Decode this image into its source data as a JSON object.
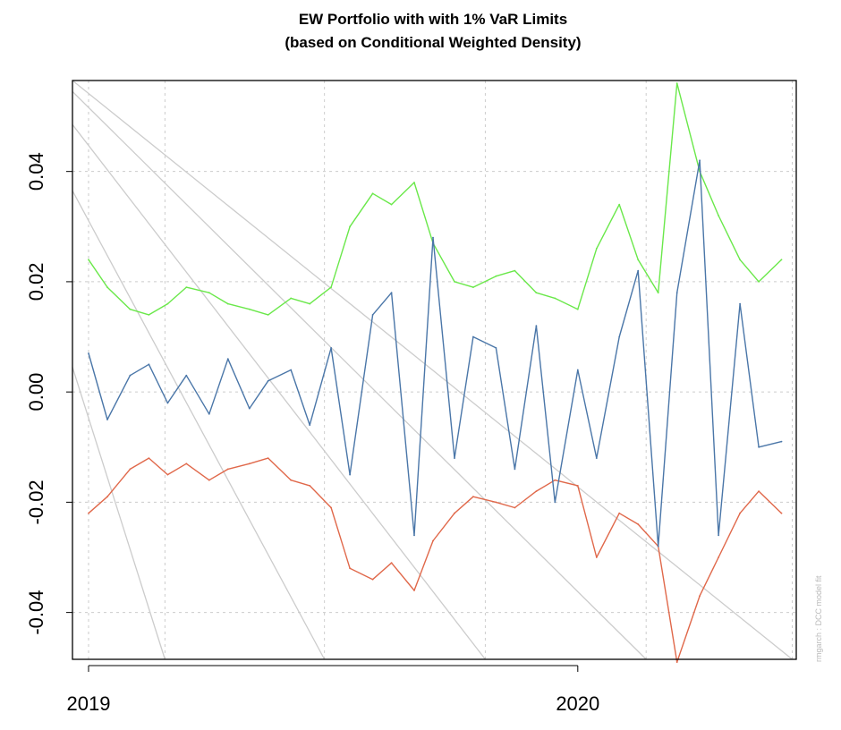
{
  "chart_data": {
    "type": "line",
    "title": "EW Portfolio with with 1% VaR Limits",
    "subtitle": "(based on Conditional Weighted Density)",
    "footnote": "rmgarch : DCC model fit",
    "xlim": [
      "2018-12-20",
      "2020-06-12"
    ],
    "ylim": [
      -0.0485,
      0.0565
    ],
    "y_ticks": [
      "-0.04",
      "-0.02",
      "0.00",
      "0.02",
      "0.04"
    ],
    "y_tick_values": [
      -0.04,
      -0.02,
      0.0,
      0.02,
      0.04
    ],
    "x_tick_labels": [
      "2019",
      "2020"
    ],
    "x_tick_dates": [
      "2019-01-01",
      "2020-01-01"
    ],
    "grid": true,
    "colors": {
      "returns": "#4a76a8",
      "upper": "#6ae84a",
      "lower": "#e0684a",
      "background_lines": "#cccccc",
      "grid": "#cccccc"
    },
    "grid_x_dates": [
      "2019-01-01",
      "2019-02-27",
      "2019-06-26",
      "2019-10-24",
      "2020-02-21",
      "2020-06-09"
    ],
    "background_lines": [
      {
        "from": [
          "2018-12-20",
          0.0045
        ],
        "to": [
          "2019-02-27",
          -0.0485
        ]
      },
      {
        "from": [
          "2018-12-20",
          0.0365
        ],
        "to": [
          "2019-06-26",
          -0.0485
        ]
      },
      {
        "from": [
          "2018-12-20",
          0.0485
        ],
        "to": [
          "2019-10-24",
          -0.0485
        ]
      },
      {
        "from": [
          "2018-12-20",
          0.0545
        ],
        "to": [
          "2020-02-21",
          -0.0485
        ]
      },
      {
        "from": [
          "2018-12-20",
          0.0565
        ],
        "to": [
          "2020-06-09",
          -0.0485
        ]
      }
    ],
    "series": [
      {
        "key": "returns",
        "x": [
          "2019-01-01",
          "2019-01-15",
          "2019-02-01",
          "2019-02-15",
          "2019-03-01",
          "2019-03-15",
          "2019-04-01",
          "2019-04-15",
          "2019-05-01",
          "2019-05-15",
          "2019-06-01",
          "2019-06-15",
          "2019-07-01",
          "2019-07-15",
          "2019-08-01",
          "2019-08-15",
          "2019-09-01",
          "2019-09-15",
          "2019-10-01",
          "2019-10-15",
          "2019-11-01",
          "2019-11-15",
          "2019-12-01",
          "2019-12-15",
          "2020-01-01",
          "2020-01-15",
          "2020-02-01",
          "2020-02-15",
          "2020-03-01",
          "2020-03-15",
          "2020-04-01",
          "2020-04-15",
          "2020-05-01",
          "2020-05-15",
          "2020-06-01"
        ],
        "values": [
          0.007,
          -0.005,
          0.003,
          0.005,
          -0.002,
          0.003,
          -0.004,
          0.006,
          -0.003,
          0.002,
          0.004,
          -0.006,
          0.008,
          -0.015,
          0.014,
          0.018,
          -0.026,
          0.028,
          -0.012,
          0.01,
          0.008,
          -0.014,
          0.012,
          -0.02,
          0.004,
          -0.012,
          0.01,
          0.022,
          -0.028,
          0.018,
          0.042,
          -0.026,
          0.016,
          -0.01,
          -0.009
        ]
      },
      {
        "key": "upper",
        "x": [
          "2019-01-01",
          "2019-01-15",
          "2019-02-01",
          "2019-02-15",
          "2019-03-01",
          "2019-03-15",
          "2019-04-01",
          "2019-04-15",
          "2019-05-01",
          "2019-05-15",
          "2019-06-01",
          "2019-06-15",
          "2019-07-01",
          "2019-07-15",
          "2019-08-01",
          "2019-08-15",
          "2019-09-01",
          "2019-09-15",
          "2019-10-01",
          "2019-10-15",
          "2019-11-01",
          "2019-11-15",
          "2019-12-01",
          "2019-12-15",
          "2020-01-01",
          "2020-01-15",
          "2020-02-01",
          "2020-02-15",
          "2020-03-01",
          "2020-03-15",
          "2020-04-01",
          "2020-04-15",
          "2020-05-01",
          "2020-05-15",
          "2020-06-01"
        ],
        "values": [
          0.024,
          0.019,
          0.015,
          0.014,
          0.016,
          0.019,
          0.018,
          0.016,
          0.015,
          0.014,
          0.017,
          0.016,
          0.019,
          0.03,
          0.036,
          0.034,
          0.038,
          0.027,
          0.02,
          0.019,
          0.021,
          0.022,
          0.018,
          0.017,
          0.015,
          0.026,
          0.034,
          0.024,
          0.018,
          0.056,
          0.04,
          0.032,
          0.024,
          0.02,
          0.024
        ]
      },
      {
        "key": "lower",
        "x": [
          "2019-01-01",
          "2019-01-15",
          "2019-02-01",
          "2019-02-15",
          "2019-03-01",
          "2019-03-15",
          "2019-04-01",
          "2019-04-15",
          "2019-05-01",
          "2019-05-15",
          "2019-06-01",
          "2019-06-15",
          "2019-07-01",
          "2019-07-15",
          "2019-08-01",
          "2019-08-15",
          "2019-09-01",
          "2019-09-15",
          "2019-10-01",
          "2019-10-15",
          "2019-11-01",
          "2019-11-15",
          "2019-12-01",
          "2019-12-15",
          "2020-01-01",
          "2020-01-15",
          "2020-02-01",
          "2020-02-15",
          "2020-03-01",
          "2020-03-15",
          "2020-04-01",
          "2020-04-15",
          "2020-05-01",
          "2020-05-15",
          "2020-06-01"
        ],
        "values": [
          -0.022,
          -0.019,
          -0.014,
          -0.012,
          -0.015,
          -0.013,
          -0.016,
          -0.014,
          -0.013,
          -0.012,
          -0.016,
          -0.017,
          -0.021,
          -0.032,
          -0.034,
          -0.031,
          -0.036,
          -0.027,
          -0.022,
          -0.019,
          -0.02,
          -0.021,
          -0.018,
          -0.016,
          -0.017,
          -0.03,
          -0.022,
          -0.024,
          -0.028,
          -0.049,
          -0.037,
          -0.03,
          -0.022,
          -0.018,
          -0.022
        ]
      }
    ]
  }
}
